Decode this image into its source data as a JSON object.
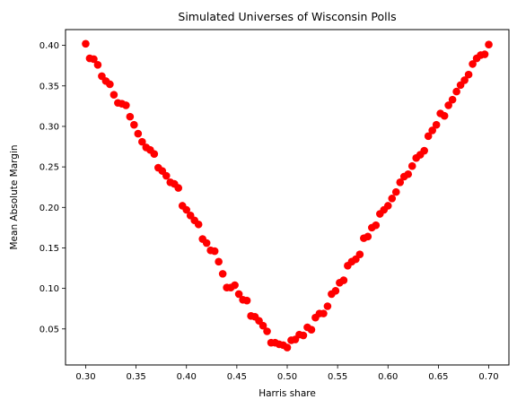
{
  "chart_data": {
    "type": "scatter",
    "title": "Simulated Universes of Wisconsin Polls",
    "xlabel": "Harris share",
    "ylabel": "Mean Absolute Margin",
    "xlim": [
      0.28,
      0.72
    ],
    "ylim": [
      0.0055,
      0.4195
    ],
    "x_ticks": [
      "0.30",
      "0.35",
      "0.40",
      "0.45",
      "0.50",
      "0.55",
      "0.60",
      "0.65",
      "0.70"
    ],
    "y_ticks": [
      "0.05",
      "0.10",
      "0.15",
      "0.20",
      "0.25",
      "0.30",
      "0.35",
      "0.40"
    ],
    "marker_color": "#ff0000",
    "grid": false,
    "legend": "none",
    "series": [
      {
        "x": [
          0.3,
          0.304,
          0.308,
          0.312,
          0.316,
          0.32,
          0.324,
          0.328,
          0.332,
          0.336,
          0.34,
          0.344,
          0.348,
          0.352,
          0.356,
          0.36,
          0.364,
          0.368,
          0.372,
          0.376,
          0.38,
          0.384,
          0.388,
          0.392,
          0.396,
          0.4,
          0.404,
          0.408,
          0.412,
          0.416,
          0.42,
          0.424,
          0.428,
          0.432,
          0.436,
          0.44,
          0.444,
          0.448,
          0.452,
          0.456,
          0.46,
          0.464,
          0.468,
          0.472,
          0.476,
          0.48,
          0.484,
          0.488,
          0.492,
          0.496,
          0.5,
          0.504,
          0.508,
          0.512,
          0.516,
          0.52,
          0.524,
          0.528,
          0.532,
          0.536,
          0.54,
          0.544,
          0.548,
          0.552,
          0.556,
          0.56,
          0.564,
          0.568,
          0.572,
          0.576,
          0.58,
          0.584,
          0.588,
          0.592,
          0.596,
          0.6,
          0.604,
          0.608,
          0.612,
          0.616,
          0.62,
          0.624,
          0.628,
          0.632,
          0.636,
          0.64,
          0.644,
          0.648,
          0.652,
          0.656,
          0.66,
          0.664,
          0.668,
          0.672,
          0.676,
          0.68,
          0.684,
          0.688,
          0.692,
          0.696,
          0.7
        ],
        "y": [
          0.402,
          0.384,
          0.383,
          0.376,
          0.362,
          0.356,
          0.352,
          0.339,
          0.329,
          0.328,
          0.326,
          0.312,
          0.302,
          0.291,
          0.281,
          0.274,
          0.271,
          0.266,
          0.249,
          0.245,
          0.239,
          0.231,
          0.229,
          0.224,
          0.202,
          0.197,
          0.19,
          0.184,
          0.179,
          0.161,
          0.156,
          0.147,
          0.146,
          0.133,
          0.118,
          0.101,
          0.101,
          0.104,
          0.093,
          0.086,
          0.085,
          0.066,
          0.065,
          0.06,
          0.054,
          0.047,
          0.033,
          0.033,
          0.031,
          0.03,
          0.027,
          0.036,
          0.037,
          0.043,
          0.042,
          0.052,
          0.049,
          0.064,
          0.069,
          0.069,
          0.078,
          0.093,
          0.097,
          0.107,
          0.11,
          0.128,
          0.133,
          0.136,
          0.142,
          0.162,
          0.164,
          0.175,
          0.178,
          0.192,
          0.197,
          0.202,
          0.211,
          0.219,
          0.231,
          0.238,
          0.241,
          0.251,
          0.261,
          0.265,
          0.27,
          0.288,
          0.295,
          0.302,
          0.316,
          0.313,
          0.326,
          0.333,
          0.343,
          0.351,
          0.357,
          0.364,
          0.377,
          0.384,
          0.388,
          0.389,
          0.401
        ]
      }
    ]
  }
}
